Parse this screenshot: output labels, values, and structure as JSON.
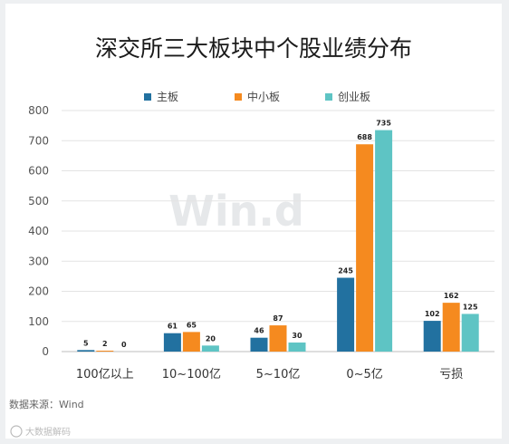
{
  "chart_data": {
    "type": "bar",
    "title": "深交所三大板块中个股业绩分布",
    "categories": [
      "100亿以上",
      "10~100亿",
      "5~10亿",
      "0~5亿",
      "亏损"
    ],
    "series": [
      {
        "name": "主板",
        "values": [
          5,
          61,
          46,
          245,
          102
        ],
        "color": "#2271a0"
      },
      {
        "name": "中小板",
        "values": [
          2,
          65,
          87,
          688,
          162
        ],
        "color": "#f58a1f"
      },
      {
        "name": "创业板",
        "values": [
          0,
          20,
          30,
          735,
          125
        ],
        "color": "#5ec4c4"
      }
    ],
    "yticks": [
      "0",
      "100",
      "200",
      "300",
      "400",
      "500",
      "600",
      "700",
      "800"
    ],
    "ylim": [
      0,
      800
    ],
    "grid": true,
    "legend_position": "top"
  },
  "source": "数据来源：Wind",
  "watermark": "Win.d",
  "credit": "大数据解码"
}
